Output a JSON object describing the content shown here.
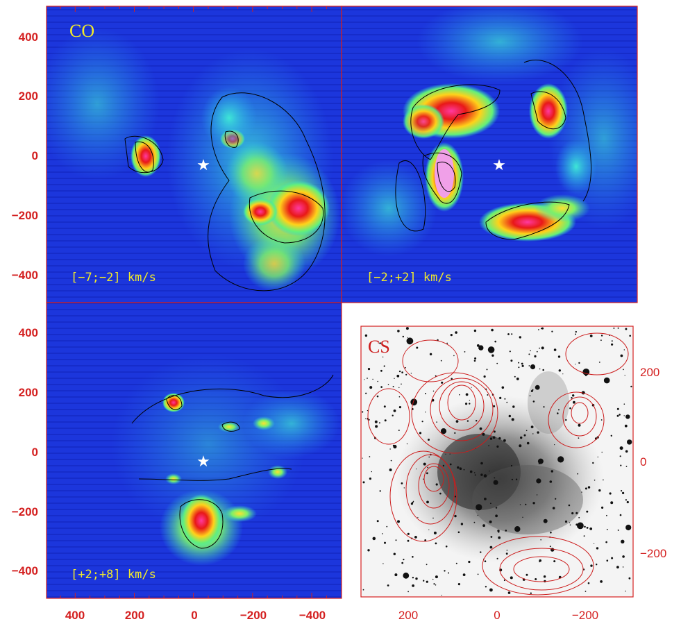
{
  "colors": {
    "axis": "#d42020",
    "label_yellow": "#f2ea2a",
    "star": "#ffffff",
    "map_bg": "#1a33d8",
    "contour_black": "#000000",
    "contour_red": "#cc1c1c",
    "stars_black": "#111111"
  },
  "co_maps": {
    "molecule": "CO",
    "y_ticks": [
      "400",
      "200",
      "0",
      "−200",
      "−400"
    ],
    "x_ticks": [
      "400",
      "200",
      "0",
      "−200",
      "−400"
    ],
    "panels": [
      {
        "velocity_range": "[−7;−2] km/s",
        "star_icon": "star-icon"
      },
      {
        "velocity_range": "[−2;+2] km/s",
        "star_icon": "star-icon"
      },
      {
        "velocity_range": "[+2;+8] km/s",
        "star_icon": "star-icon"
      }
    ]
  },
  "cs_map": {
    "molecule": "CS",
    "y_ticks": [
      "200",
      "0",
      "−200"
    ],
    "x_ticks": [
      "200",
      "0",
      "−200"
    ]
  }
}
